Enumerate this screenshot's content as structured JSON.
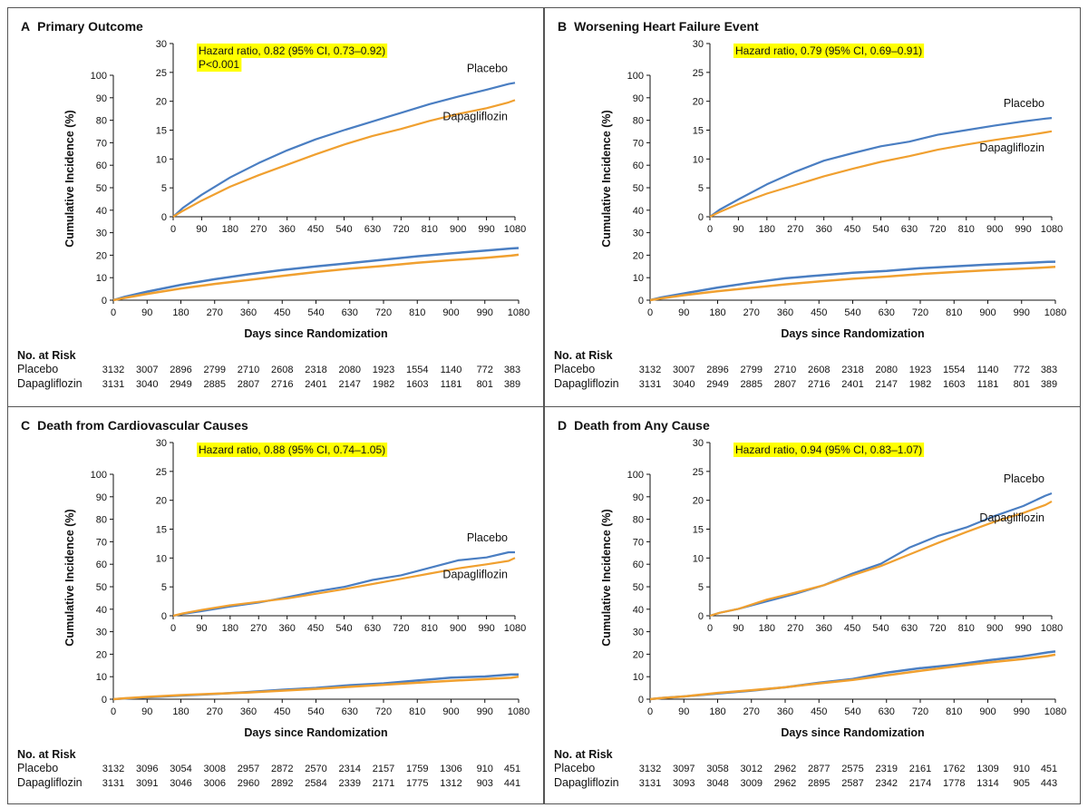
{
  "colors": {
    "placebo": "#4a7ec2",
    "dapagliflozin": "#f0a030",
    "highlight": "#ffff00",
    "frame": "#555555"
  },
  "shared": {
    "x_axis_label": "Days since Randomization",
    "y_axis_label": "Cumulative Incidence (%)",
    "at_risk_header": "No. at Risk",
    "placebo_label": "Placebo",
    "dapagliflozin_label": "Dapagliflozin"
  },
  "chart_data": [
    {
      "letter": "A",
      "title": "Primary Outcome",
      "type": "line",
      "xlabel": "Days since Randomization",
      "ylabel": "Cumulative Incidence (%)",
      "xlim": [
        0,
        1080
      ],
      "ylim": [
        0,
        100
      ],
      "xticks": [
        0,
        90,
        180,
        270,
        360,
        450,
        540,
        630,
        720,
        810,
        900,
        990,
        1080
      ],
      "yticks": [
        0,
        10,
        20,
        30,
        40,
        50,
        60,
        70,
        80,
        90,
        100
      ],
      "inset": {
        "xlim": [
          0,
          1080
        ],
        "ylim": [
          0,
          30
        ],
        "xticks": [
          0,
          90,
          180,
          270,
          360,
          450,
          540,
          630,
          720,
          810,
          900,
          990,
          1080
        ],
        "yticks": [
          0,
          5,
          10,
          15,
          20,
          25,
          30
        ],
        "annotation": [
          "Hazard ratio, 0.82 (95% CI, 0.73–0.92)",
          "P<0.001"
        ]
      },
      "series": [
        {
          "name": "Placebo",
          "x": [
            0,
            30,
            90,
            180,
            270,
            360,
            450,
            540,
            630,
            720,
            810,
            900,
            990,
            1060,
            1080
          ],
          "y": [
            0,
            1.5,
            3.8,
            6.8,
            9.3,
            11.5,
            13.4,
            15.0,
            16.5,
            18.0,
            19.5,
            20.8,
            22.0,
            23.0,
            23.2
          ]
        },
        {
          "name": "Dapagliflozin",
          "x": [
            0,
            30,
            90,
            180,
            270,
            360,
            450,
            540,
            630,
            720,
            810,
            900,
            990,
            1060,
            1080
          ],
          "y": [
            0,
            1.0,
            2.8,
            5.2,
            7.2,
            9.0,
            10.8,
            12.5,
            14.0,
            15.2,
            16.6,
            17.8,
            18.8,
            19.8,
            20.2
          ]
        }
      ],
      "at_risk": {
        "Placebo": [
          "3132",
          "3007",
          "2896",
          "2799",
          "2710",
          "2608",
          "2318",
          "2080",
          "1923",
          "1554",
          "1140",
          "772",
          "383"
        ],
        "Dapagliflozin": [
          "3131",
          "3040",
          "2949",
          "2885",
          "2807",
          "2716",
          "2401",
          "2147",
          "1982",
          "1603",
          "1181",
          "801",
          "389"
        ]
      }
    },
    {
      "letter": "B",
      "title": "Worsening Heart Failure Event",
      "type": "line",
      "xlabel": "Days since Randomization",
      "ylabel": "Cumulative Incidence (%)",
      "xlim": [
        0,
        1080
      ],
      "ylim": [
        0,
        100
      ],
      "xticks": [
        0,
        90,
        180,
        270,
        360,
        450,
        540,
        630,
        720,
        810,
        900,
        990,
        1080
      ],
      "yticks": [
        0,
        10,
        20,
        30,
        40,
        50,
        60,
        70,
        80,
        90,
        100
      ],
      "inset": {
        "xlim": [
          0,
          1080
        ],
        "ylim": [
          0,
          30
        ],
        "xticks": [
          0,
          90,
          180,
          270,
          360,
          450,
          540,
          630,
          720,
          810,
          900,
          990,
          1080
        ],
        "yticks": [
          0,
          5,
          10,
          15,
          20,
          25,
          30
        ],
        "annotation": [
          "Hazard ratio, 0.79 (95% CI, 0.69–0.91)"
        ]
      },
      "series": [
        {
          "name": "Placebo",
          "x": [
            0,
            30,
            90,
            180,
            270,
            360,
            450,
            540,
            630,
            720,
            810,
            900,
            990,
            1060,
            1080
          ],
          "y": [
            0,
            1.2,
            3.0,
            5.6,
            7.8,
            9.7,
            11.0,
            12.2,
            13.0,
            14.2,
            15.0,
            15.8,
            16.5,
            17.0,
            17.1
          ]
        },
        {
          "name": "Dapagliflozin",
          "x": [
            0,
            30,
            90,
            180,
            270,
            360,
            450,
            540,
            630,
            720,
            810,
            900,
            990,
            1060,
            1080
          ],
          "y": [
            0,
            0.8,
            2.2,
            4.0,
            5.5,
            7.0,
            8.3,
            9.5,
            10.5,
            11.6,
            12.5,
            13.3,
            14.0,
            14.6,
            14.8
          ]
        }
      ],
      "at_risk": {
        "Placebo": [
          "3132",
          "3007",
          "2896",
          "2799",
          "2710",
          "2608",
          "2318",
          "2080",
          "1923",
          "1554",
          "1140",
          "772",
          "383"
        ],
        "Dapagliflozin": [
          "3131",
          "3040",
          "2949",
          "2885",
          "2807",
          "2716",
          "2401",
          "2147",
          "1982",
          "1603",
          "1181",
          "801",
          "389"
        ]
      }
    },
    {
      "letter": "C",
      "title": "Death from Cardiovascular Causes",
      "type": "line",
      "xlabel": "Days since Randomization",
      "ylabel": "Cumulative Incidence (%)",
      "xlim": [
        0,
        1080
      ],
      "ylim": [
        0,
        100
      ],
      "xticks": [
        0,
        90,
        180,
        270,
        360,
        450,
        540,
        630,
        720,
        810,
        900,
        990,
        1080
      ],
      "yticks": [
        0,
        10,
        20,
        30,
        40,
        50,
        60,
        70,
        80,
        90,
        100
      ],
      "inset": {
        "xlim": [
          0,
          1080
        ],
        "ylim": [
          0,
          30
        ],
        "xticks": [
          0,
          90,
          180,
          270,
          360,
          450,
          540,
          630,
          720,
          810,
          900,
          990,
          1080
        ],
        "yticks": [
          0,
          5,
          10,
          15,
          20,
          25,
          30
        ],
        "annotation": [
          "Hazard ratio, 0.88 (95% CI, 0.74–1.05)"
        ]
      },
      "series": [
        {
          "name": "Placebo",
          "x": [
            0,
            30,
            90,
            180,
            270,
            360,
            450,
            540,
            630,
            720,
            810,
            900,
            990,
            1060,
            1080
          ],
          "y": [
            0,
            0.3,
            0.8,
            1.6,
            2.3,
            3.2,
            4.2,
            5.0,
            6.2,
            7.0,
            8.3,
            9.6,
            10.1,
            11.0,
            11.0
          ]
        },
        {
          "name": "Dapagliflozin",
          "x": [
            0,
            30,
            90,
            180,
            270,
            360,
            450,
            540,
            630,
            720,
            810,
            900,
            990,
            1060,
            1080
          ],
          "y": [
            0,
            0.4,
            1.0,
            1.8,
            2.4,
            3.0,
            3.8,
            4.6,
            5.5,
            6.4,
            7.3,
            8.2,
            8.9,
            9.5,
            10.0
          ]
        }
      ],
      "at_risk": {
        "Placebo": [
          "3132",
          "3096",
          "3054",
          "3008",
          "2957",
          "2872",
          "2570",
          "2314",
          "2157",
          "1759",
          "1306",
          "910",
          "451"
        ],
        "Dapagliflozin": [
          "3131",
          "3091",
          "3046",
          "3006",
          "2960",
          "2892",
          "2584",
          "2339",
          "2171",
          "1775",
          "1312",
          "903",
          "441"
        ]
      }
    },
    {
      "letter": "D",
      "title": "Death from Any Cause",
      "type": "line",
      "xlabel": "Days since Randomization",
      "ylabel": "Cumulative Incidence (%)",
      "xlim": [
        0,
        1080
      ],
      "ylim": [
        0,
        100
      ],
      "xticks": [
        0,
        90,
        180,
        270,
        360,
        450,
        540,
        630,
        720,
        810,
        900,
        990,
        1080
      ],
      "yticks": [
        0,
        10,
        20,
        30,
        40,
        50,
        60,
        70,
        80,
        90,
        100
      ],
      "inset": {
        "xlim": [
          0,
          1080
        ],
        "ylim": [
          0,
          30
        ],
        "xticks": [
          0,
          90,
          180,
          270,
          360,
          450,
          540,
          630,
          720,
          810,
          900,
          990,
          1080
        ],
        "yticks": [
          0,
          5,
          10,
          15,
          20,
          25,
          30
        ],
        "annotation": [
          "Hazard ratio, 0.94 (95% CI, 0.83–1.07)"
        ]
      },
      "series": [
        {
          "name": "Placebo",
          "x": [
            0,
            30,
            90,
            180,
            270,
            360,
            450,
            540,
            630,
            720,
            810,
            900,
            990,
            1060,
            1080
          ],
          "y": [
            0,
            0.5,
            1.2,
            2.5,
            3.8,
            5.3,
            7.3,
            9.0,
            11.8,
            13.8,
            15.3,
            17.3,
            19.0,
            20.8,
            21.2
          ]
        },
        {
          "name": "Dapagliflozin",
          "x": [
            0,
            30,
            90,
            180,
            270,
            360,
            450,
            540,
            630,
            720,
            810,
            900,
            990,
            1060,
            1080
          ],
          "y": [
            0,
            0.5,
            1.2,
            2.8,
            4.0,
            5.3,
            7.0,
            8.6,
            10.6,
            12.6,
            14.5,
            16.3,
            17.8,
            19.2,
            19.8
          ]
        }
      ],
      "at_risk": {
        "Placebo": [
          "3132",
          "3097",
          "3058",
          "3012",
          "2962",
          "2877",
          "2575",
          "2319",
          "2161",
          "1762",
          "1309",
          "910",
          "451"
        ],
        "Dapagliflozin": [
          "3131",
          "3093",
          "3048",
          "3009",
          "2962",
          "2895",
          "2587",
          "2342",
          "2174",
          "1778",
          "1314",
          "905",
          "443"
        ]
      }
    }
  ]
}
